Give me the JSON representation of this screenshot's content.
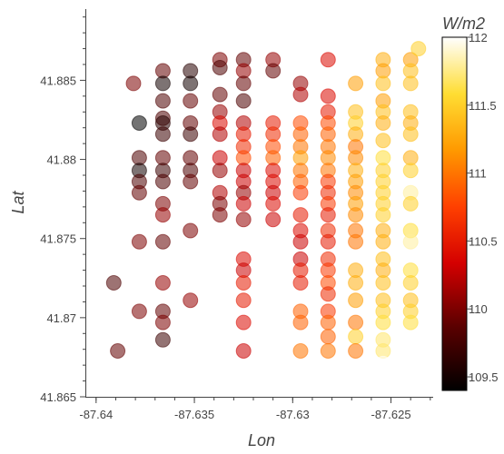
{
  "chart_data": {
    "type": "scatter",
    "title": "",
    "xlabel": "Lon",
    "ylabel": "Lat",
    "xlim": [
      -87.6405,
      -87.6229
    ],
    "ylim": [
      41.865,
      41.8895
    ],
    "x_ticks": [
      -87.64,
      -87.635,
      -87.63,
      -87.625
    ],
    "x_tick_labels": [
      "-87.64",
      "-87.635",
      "-87.63",
      "-87.625"
    ],
    "y_ticks": [
      41.865,
      41.87,
      41.875,
      41.88,
      41.885
    ],
    "y_tick_labels": [
      "41.865",
      "41.87",
      "41.875",
      "41.88",
      "41.885"
    ],
    "grid": false,
    "colorbar": {
      "title": "W/m2",
      "range": [
        109.4,
        112.0
      ],
      "ticks": [
        109.5,
        110,
        110.5,
        111,
        111.5,
        112
      ],
      "tick_labels": [
        "109.5",
        "110",
        "110.5",
        "111",
        "111.5",
        "112"
      ],
      "colormap": "hot"
    },
    "colors": {
      "axis": "#444444",
      "marker_alpha": 0.55
    },
    "point_columns": [
      "lon",
      "lat",
      "value"
    ],
    "points": [
      [
        -87.6391,
        41.8722,
        109.8
      ],
      [
        -87.6389,
        41.8679,
        109.9
      ],
      [
        -87.6381,
        41.8848,
        110.0
      ],
      [
        -87.6378,
        41.8823,
        109.4
      ],
      [
        -87.6378,
        41.8801,
        109.8
      ],
      [
        -87.6378,
        41.8793,
        109.5
      ],
      [
        -87.6378,
        41.8786,
        109.8
      ],
      [
        -87.6378,
        41.8779,
        109.9
      ],
      [
        -87.6378,
        41.8748,
        110.0
      ],
      [
        -87.6378,
        41.8704,
        110.0
      ],
      [
        -87.6366,
        41.8856,
        109.9
      ],
      [
        -87.6366,
        41.8848,
        109.5
      ],
      [
        -87.6366,
        41.8837,
        109.8
      ],
      [
        -87.6366,
        41.8826,
        109.8
      ],
      [
        -87.6366,
        41.8823,
        109.6
      ],
      [
        -87.6366,
        41.8816,
        109.7
      ],
      [
        -87.6366,
        41.8801,
        109.9
      ],
      [
        -87.6366,
        41.8793,
        109.7
      ],
      [
        -87.6366,
        41.8786,
        109.8
      ],
      [
        -87.6366,
        41.8772,
        110.0
      ],
      [
        -87.6366,
        41.8765,
        110.1
      ],
      [
        -87.6366,
        41.8748,
        109.9
      ],
      [
        -87.6366,
        41.8722,
        110.1
      ],
      [
        -87.6366,
        41.8704,
        109.9
      ],
      [
        -87.6366,
        41.8697,
        110.0
      ],
      [
        -87.6366,
        41.8686,
        109.7
      ],
      [
        -87.6352,
        41.8856,
        109.6
      ],
      [
        -87.6352,
        41.8848,
        109.5
      ],
      [
        -87.6352,
        41.8837,
        109.9
      ],
      [
        -87.6352,
        41.8823,
        109.9
      ],
      [
        -87.6352,
        41.8816,
        109.7
      ],
      [
        -87.6352,
        41.8801,
        109.9
      ],
      [
        -87.6352,
        41.8793,
        109.8
      ],
      [
        -87.6352,
        41.8786,
        109.9
      ],
      [
        -87.6352,
        41.8755,
        110.0
      ],
      [
        -87.6352,
        41.8711,
        110.1
      ],
      [
        -87.6337,
        41.8863,
        110.0
      ],
      [
        -87.6337,
        41.8858,
        109.8
      ],
      [
        -87.6337,
        41.8841,
        109.9
      ],
      [
        -87.6337,
        41.883,
        110.1
      ],
      [
        -87.6337,
        41.8823,
        110.4
      ],
      [
        -87.6337,
        41.8816,
        110.2
      ],
      [
        -87.6337,
        41.8801,
        110.3
      ],
      [
        -87.6337,
        41.8793,
        110.1
      ],
      [
        -87.6337,
        41.8779,
        110.2
      ],
      [
        -87.6337,
        41.8772,
        110.0
      ],
      [
        -87.6337,
        41.8765,
        110.0
      ],
      [
        -87.6325,
        41.8863,
        109.9
      ],
      [
        -87.6325,
        41.8856,
        110.1
      ],
      [
        -87.6325,
        41.8848,
        109.9
      ],
      [
        -87.6325,
        41.8837,
        109.8
      ],
      [
        -87.6325,
        41.8823,
        110.2
      ],
      [
        -87.6325,
        41.8816,
        110.5
      ],
      [
        -87.6325,
        41.8808,
        110.6
      ],
      [
        -87.6325,
        41.8801,
        110.8
      ],
      [
        -87.6325,
        41.8793,
        110.3
      ],
      [
        -87.6325,
        41.8786,
        110.3
      ],
      [
        -87.6325,
        41.8779,
        110.1
      ],
      [
        -87.6325,
        41.8772,
        110.3
      ],
      [
        -87.6325,
        41.8762,
        110.1
      ],
      [
        -87.6325,
        41.8737,
        110.4
      ],
      [
        -87.6325,
        41.873,
        110.3
      ],
      [
        -87.6325,
        41.8722,
        110.5
      ],
      [
        -87.6325,
        41.8711,
        110.5
      ],
      [
        -87.6325,
        41.8697,
        110.4
      ],
      [
        -87.6325,
        41.8679,
        110.3
      ],
      [
        -87.631,
        41.8863,
        110.1
      ],
      [
        -87.631,
        41.8856,
        109.9
      ],
      [
        -87.631,
        41.8823,
        110.5
      ],
      [
        -87.631,
        41.8816,
        110.6
      ],
      [
        -87.631,
        41.8808,
        110.8
      ],
      [
        -87.631,
        41.8801,
        110.9
      ],
      [
        -87.631,
        41.8793,
        110.4
      ],
      [
        -87.631,
        41.8786,
        110.4
      ],
      [
        -87.631,
        41.8779,
        110.3
      ],
      [
        -87.631,
        41.8772,
        110.4
      ],
      [
        -87.631,
        41.8762,
        110.3
      ],
      [
        -87.6296,
        41.8848,
        110.1
      ],
      [
        -87.6296,
        41.8841,
        110.2
      ],
      [
        -87.6296,
        41.8823,
        110.8
      ],
      [
        -87.6296,
        41.8816,
        110.9
      ],
      [
        -87.6296,
        41.8808,
        111.0
      ],
      [
        -87.6296,
        41.8801,
        111.2
      ],
      [
        -87.6296,
        41.8793,
        111.0
      ],
      [
        -87.6296,
        41.8786,
        110.9
      ],
      [
        -87.6296,
        41.8779,
        110.7
      ],
      [
        -87.6296,
        41.8765,
        110.5
      ],
      [
        -87.6296,
        41.8755,
        110.4
      ],
      [
        -87.6296,
        41.8748,
        110.3
      ],
      [
        -87.6296,
        41.8737,
        110.3
      ],
      [
        -87.6296,
        41.873,
        110.5
      ],
      [
        -87.6296,
        41.8722,
        110.5
      ],
      [
        -87.6296,
        41.8704,
        110.9
      ],
      [
        -87.6296,
        41.8697,
        110.9
      ],
      [
        -87.6296,
        41.8679,
        111.0
      ],
      [
        -87.6282,
        41.8863,
        110.4
      ],
      [
        -87.6282,
        41.884,
        110.4
      ],
      [
        -87.6282,
        41.883,
        110.5
      ],
      [
        -87.6282,
        41.8823,
        110.8
      ],
      [
        -87.6282,
        41.8816,
        110.9
      ],
      [
        -87.6282,
        41.8808,
        111.0
      ],
      [
        -87.6282,
        41.8801,
        111.1
      ],
      [
        -87.6282,
        41.8793,
        111.0
      ],
      [
        -87.6282,
        41.8786,
        110.7
      ],
      [
        -87.6282,
        41.8779,
        110.6
      ],
      [
        -87.6282,
        41.8772,
        110.7
      ],
      [
        -87.6282,
        41.8765,
        110.5
      ],
      [
        -87.6282,
        41.8755,
        110.6
      ],
      [
        -87.6282,
        41.8748,
        110.5
      ],
      [
        -87.6282,
        41.8737,
        110.6
      ],
      [
        -87.6282,
        41.873,
        110.7
      ],
      [
        -87.6282,
        41.8722,
        110.8
      ],
      [
        -87.6282,
        41.8715,
        110.6
      ],
      [
        -87.6282,
        41.8704,
        110.7
      ],
      [
        -87.6282,
        41.8697,
        110.9
      ],
      [
        -87.6282,
        41.8688,
        110.9
      ],
      [
        -87.6282,
        41.8679,
        111.0
      ],
      [
        -87.6268,
        41.8848,
        111.2
      ],
      [
        -87.6268,
        41.883,
        111.4
      ],
      [
        -87.6268,
        41.8823,
        111.5
      ],
      [
        -87.6268,
        41.8816,
        111.3
      ],
      [
        -87.6268,
        41.8808,
        111.0
      ],
      [
        -87.6268,
        41.8801,
        111.1
      ],
      [
        -87.6268,
        41.8793,
        111.3
      ],
      [
        -87.6268,
        41.8786,
        111.2
      ],
      [
        -87.6268,
        41.8779,
        111.1
      ],
      [
        -87.6268,
        41.8772,
        111.2
      ],
      [
        -87.6268,
        41.8765,
        111.1
      ],
      [
        -87.6268,
        41.8755,
        111.0
      ],
      [
        -87.6268,
        41.8748,
        111.0
      ],
      [
        -87.6268,
        41.873,
        111.3
      ],
      [
        -87.6268,
        41.8722,
        111.3
      ],
      [
        -87.6268,
        41.8711,
        111.2
      ],
      [
        -87.6268,
        41.8697,
        111.0
      ],
      [
        -87.6268,
        41.8688,
        111.5
      ],
      [
        -87.6268,
        41.8679,
        111.0
      ],
      [
        -87.6254,
        41.8863,
        111.3
      ],
      [
        -87.6254,
        41.8856,
        111.2
      ],
      [
        -87.6254,
        41.8848,
        111.4
      ],
      [
        -87.6254,
        41.8837,
        111.2
      ],
      [
        -87.6254,
        41.883,
        111.4
      ],
      [
        -87.6254,
        41.8823,
        111.3
      ],
      [
        -87.6254,
        41.8812,
        111.4
      ],
      [
        -87.6254,
        41.8801,
        111.6
      ],
      [
        -87.6254,
        41.8793,
        111.5
      ],
      [
        -87.6254,
        41.8786,
        111.5
      ],
      [
        -87.6254,
        41.8779,
        111.5
      ],
      [
        -87.6254,
        41.8772,
        111.5
      ],
      [
        -87.6254,
        41.8765,
        111.5
      ],
      [
        -87.6254,
        41.8755,
        111.3
      ],
      [
        -87.6254,
        41.8748,
        111.3
      ],
      [
        -87.6254,
        41.8737,
        111.4
      ],
      [
        -87.6254,
        41.873,
        111.3
      ],
      [
        -87.6254,
        41.8722,
        111.4
      ],
      [
        -87.6254,
        41.8711,
        111.4
      ],
      [
        -87.6254,
        41.8704,
        111.5
      ],
      [
        -87.6254,
        41.8697,
        111.6
      ],
      [
        -87.6254,
        41.8686,
        111.7
      ],
      [
        -87.6254,
        41.8679,
        111.7
      ],
      [
        -87.6254,
        41.8671,
        112.0
      ],
      [
        -87.624,
        41.8863,
        111.2
      ],
      [
        -87.624,
        41.8856,
        111.4
      ],
      [
        -87.624,
        41.8848,
        111.4
      ],
      [
        -87.624,
        41.883,
        111.4
      ],
      [
        -87.624,
        41.8823,
        111.3
      ],
      [
        -87.624,
        41.8816,
        111.4
      ],
      [
        -87.624,
        41.8801,
        111.3
      ],
      [
        -87.624,
        41.8793,
        111.5
      ],
      [
        -87.624,
        41.8779,
        111.8
      ],
      [
        -87.624,
        41.8772,
        111.5
      ],
      [
        -87.624,
        41.8755,
        111.6
      ],
      [
        -87.624,
        41.8748,
        111.8
      ],
      [
        -87.624,
        41.873,
        111.6
      ],
      [
        -87.624,
        41.8722,
        111.5
      ],
      [
        -87.624,
        41.8711,
        111.4
      ],
      [
        -87.624,
        41.8704,
        111.5
      ],
      [
        -87.624,
        41.8697,
        111.6
      ],
      [
        -87.6236,
        41.887,
        111.5
      ]
    ]
  }
}
